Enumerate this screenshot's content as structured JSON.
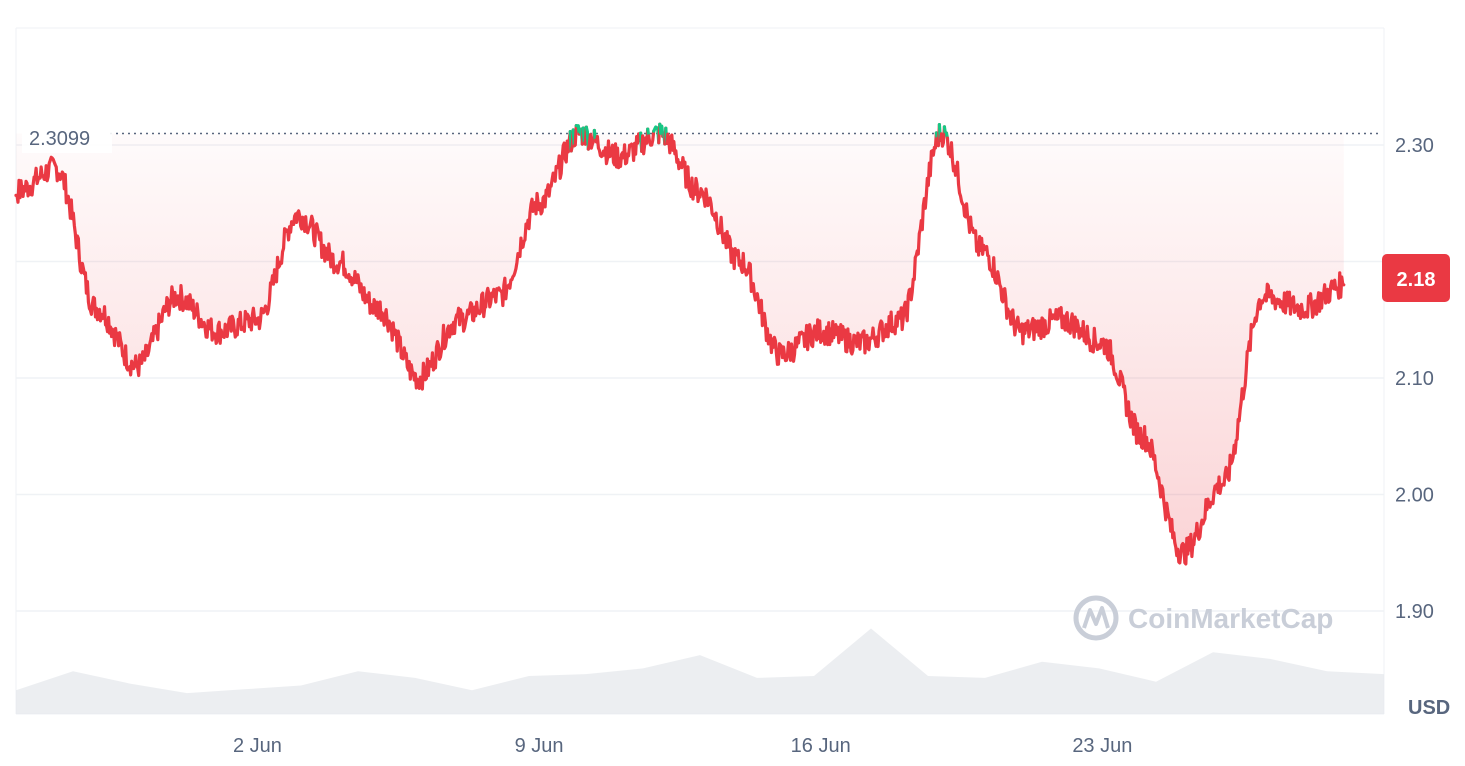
{
  "watermark": "CoinMarketCap",
  "currency_unit": "USD",
  "reference_label": "2.3099",
  "current_price_label": "2.18",
  "colors": {
    "line_down": "#ea3943",
    "line_up": "#16c784",
    "fill_down": "#ea3943",
    "grid": "#eff2f5",
    "volume": "#e6e8ec",
    "axis_text": "#58667e"
  },
  "chart_data": {
    "type": "area",
    "title": "",
    "xlabel": "",
    "ylabel": "USD",
    "x_range": [
      "2025-05-27",
      "2025-06-30"
    ],
    "ylim": [
      1.9,
      2.4
    ],
    "y_ticks": [
      1.9,
      2.0,
      2.1,
      2.3
    ],
    "y_tick_labels": [
      "1.90",
      "2.00",
      "2.10",
      "2.30"
    ],
    "x_ticks": [
      "2025-06-02",
      "2025-06-09",
      "2025-06-16",
      "2025-06-23"
    ],
    "x_tick_labels": [
      "2 Jun",
      "9 Jun",
      "16 Jun",
      "23 Jun"
    ],
    "reference_value": 2.3099,
    "current_value": 2.18,
    "grid": true,
    "series": [
      {
        "x": [
          "2025-05-26",
          "2025-05-27",
          "2025-05-28",
          "2025-05-29",
          "2025-05-30",
          "2025-05-31",
          "2025-06-01",
          "2025-06-02",
          "2025-06-03",
          "2025-06-04",
          "2025-06-05",
          "2025-06-06",
          "2025-06-07",
          "2025-06-08",
          "2025-06-09",
          "2025-06-10",
          "2025-06-11",
          "2025-06-12",
          "2025-06-13",
          "2025-06-14",
          "2025-06-15",
          "2025-06-16",
          "2025-06-17",
          "2025-06-18",
          "2025-06-19",
          "2025-06-20",
          "2025-06-21",
          "2025-06-22",
          "2025-06-23",
          "2025-06-24",
          "2025-06-25",
          "2025-06-26",
          "2025-06-27",
          "2025-06-28",
          "2025-06-29"
        ],
        "values": [
          2.31,
          2.26,
          2.28,
          2.16,
          2.11,
          2.17,
          2.14,
          2.15,
          2.24,
          2.2,
          2.16,
          2.1,
          2.15,
          2.17,
          2.25,
          2.31,
          2.29,
          2.31,
          2.26,
          2.2,
          2.12,
          2.14,
          2.13,
          2.15,
          2.31,
          2.21,
          2.14,
          2.15,
          2.13,
          2.05,
          1.95,
          2.01,
          2.17,
          2.16,
          2.18
        ]
      }
    ],
    "volume_series": [
      0.25,
      0.45,
      0.32,
      0.22,
      0.26,
      0.3,
      0.45,
      0.38,
      0.25,
      0.4,
      0.42,
      0.48,
      0.62,
      0.38,
      0.4,
      0.9,
      0.4,
      0.38,
      0.55,
      0.48,
      0.34,
      0.65,
      0.58,
      0.45,
      0.42
    ]
  }
}
